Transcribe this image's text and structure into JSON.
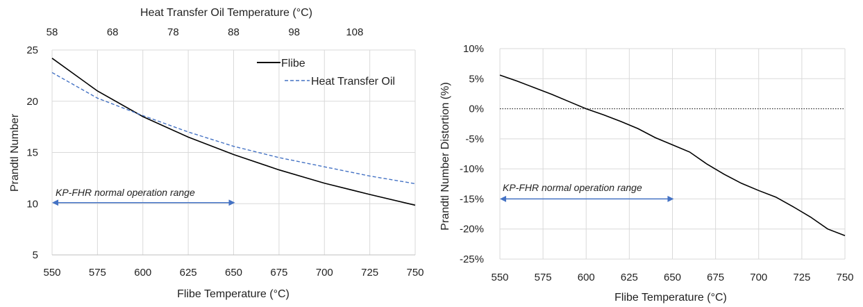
{
  "colors": {
    "flibe": "#000000",
    "oil": "#4472C4",
    "arrow": "#4472C4",
    "grid": "#d9d9d9",
    "zero_line": "#000000"
  },
  "chart_data": [
    {
      "type": "line",
      "xlabel": "Flibe Temperature (°C)",
      "x2label": "Heat Transfer Oil Temperature (°C)",
      "ylabel": "Prandtl Number",
      "xlim": [
        550,
        750
      ],
      "x2lim": [
        58,
        118
      ],
      "ylim": [
        5,
        25
      ],
      "x_ticks": [
        "550",
        "575",
        "600",
        "625",
        "650",
        "675",
        "700",
        "725",
        "750"
      ],
      "x2_ticks": [
        "58",
        "68",
        "78",
        "88",
        "98",
        "108"
      ],
      "y_ticks": [
        "5",
        "10",
        "15",
        "20",
        "25"
      ],
      "grid": true,
      "legend_position": "top-right",
      "x": [
        550,
        575,
        600,
        625,
        650,
        675,
        700,
        725,
        750
      ],
      "series": [
        {
          "name": "Flibe",
          "style": "solid",
          "values": [
            24.2,
            21.0,
            18.5,
            16.5,
            14.8,
            13.3,
            12.0,
            10.9,
            9.85
          ]
        },
        {
          "name": "Heat Transfer Oil",
          "style": "dashed",
          "values": [
            22.8,
            20.3,
            18.6,
            17.0,
            15.6,
            14.5,
            13.6,
            12.7,
            11.95
          ]
        }
      ],
      "annotation": {
        "text": "KP-FHR normal operation range",
        "x_range": [
          550,
          650
        ],
        "y": 10.1
      }
    },
    {
      "type": "line",
      "xlabel": "Flibe Temperature (°C)",
      "ylabel": "Prandtl Number Distortion (%)",
      "xlim": [
        550,
        750
      ],
      "ylim": [
        -25,
        10
      ],
      "x_ticks": [
        "550",
        "575",
        "600",
        "625",
        "650",
        "675",
        "700",
        "725",
        "750"
      ],
      "y_ticks": [
        "10%",
        "5%",
        "0%",
        "-5%",
        "-10%",
        "-15%",
        "-20%",
        "-25%"
      ],
      "grid": true,
      "reference_line_y": 0,
      "series": [
        {
          "x": [
            550,
            560,
            570,
            580,
            590,
            600,
            610,
            620,
            630,
            640,
            650,
            660,
            670,
            680,
            690,
            700,
            710,
            720,
            730,
            740,
            750
          ],
          "values": [
            5.6,
            4.6,
            3.5,
            2.4,
            1.2,
            0.0,
            -1.0,
            -2.1,
            -3.3,
            -4.8,
            -6.0,
            -7.2,
            -9.2,
            -10.9,
            -12.4,
            -13.6,
            -14.7,
            -16.3,
            -18.0,
            -20.0,
            -21.1
          ]
        }
      ],
      "annotation": {
        "text": "KP-FHR normal operation range",
        "x_range": [
          550,
          650
        ],
        "y": -15
      }
    }
  ]
}
